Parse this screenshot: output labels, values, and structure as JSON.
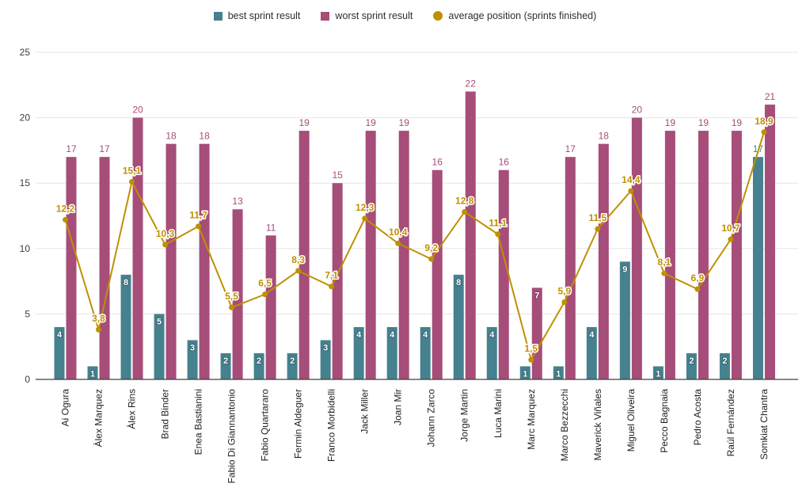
{
  "colors": {
    "best": "#45818e",
    "worst": "#a64d79",
    "average": "#bf9000",
    "gridline": "#e6e6e6",
    "axis_line": "#424242",
    "axis_text": "#222222",
    "background": "#ffffff"
  },
  "legend": {
    "items": [
      {
        "label": "best sprint result",
        "color": "#45818e",
        "shape": "square"
      },
      {
        "label": "worst sprint result",
        "color": "#a64d79",
        "shape": "square"
      },
      {
        "label": "average position (sprints finished)",
        "color": "#bf9000",
        "shape": "circle"
      }
    ]
  },
  "chart_data": {
    "type": "combo-bar-line",
    "legend_position": "top",
    "grid": true,
    "decimal_separator": ",",
    "categories": [
      "Ai Ogura",
      "Àlex Marquez",
      "Àlex Rins",
      "Brad Binder",
      "Enea Bastianini",
      "Fabio Di Giannantonio",
      "Fabio Quartararo",
      "Fermin Aldeguer",
      "Franco Morbidelli",
      "Jack Miller",
      "Joan Mir",
      "Johann Zarco",
      "Jorge Martin",
      "Luca Marini",
      "Marc Marquez",
      "Marco Bezzecchi",
      "Maverick Viñales",
      "Miguel Oliveira",
      "Pecco Bagnaia",
      "Pedro Acosta",
      "Raúl Fernández",
      "Somkiat Chantra"
    ],
    "series": [
      {
        "name": "best sprint result",
        "type": "bar",
        "color": "#45818e",
        "values": [
          4,
          1,
          8,
          5,
          3,
          2,
          2,
          2,
          3,
          4,
          4,
          4,
          8,
          4,
          1,
          1,
          4,
          9,
          1,
          2,
          2,
          17
        ],
        "labels": [
          "4",
          "1",
          "8",
          "5",
          "3",
          "2",
          "2",
          "2",
          "3",
          "4",
          "4",
          "4",
          "8",
          "4",
          "1",
          "1",
          "4",
          "9",
          "1",
          "2",
          "2",
          "17"
        ]
      },
      {
        "name": "worst sprint result",
        "type": "bar",
        "color": "#a64d79",
        "values": [
          17,
          17,
          20,
          18,
          18,
          13,
          11,
          19,
          15,
          19,
          19,
          16,
          22,
          16,
          7,
          17,
          18,
          20,
          19,
          19,
          19,
          21
        ],
        "labels": [
          "17",
          "17",
          "20",
          "18",
          "18",
          "13",
          "11",
          "19",
          "15",
          "19",
          "19",
          "16",
          "22",
          "16",
          "7",
          "17",
          "18",
          "20",
          "19",
          "19",
          "19",
          "21"
        ]
      },
      {
        "name": "average position (sprints finished)",
        "type": "line",
        "color": "#bf9000",
        "values": [
          12.2,
          3.8,
          15.1,
          10.3,
          11.7,
          5.5,
          6.5,
          8.3,
          7.1,
          12.3,
          10.4,
          9.2,
          12.8,
          11.1,
          1.5,
          5.9,
          11.5,
          14.4,
          8.1,
          6.9,
          10.7,
          18.9
        ],
        "labels": [
          "12,2",
          "3,8",
          "15,1",
          "10,3",
          "11,7",
          "5,5",
          "6,5",
          "8,3",
          "7,1",
          "12,3",
          "10,4",
          "9,2",
          "12,8",
          "11,1",
          "1,5",
          "5,9",
          "11,5",
          "14,4",
          "8,1",
          "6,9",
          "10,7",
          "18,9"
        ]
      }
    ],
    "y_axis": {
      "min": 0,
      "max": 25,
      "ticks": [
        "0",
        "5",
        "10",
        "15",
        "20",
        "25"
      ]
    },
    "annotation_placement": {
      "best_label_outside_indices": [
        21
      ],
      "worst_label_inside_indices": [
        14
      ]
    }
  }
}
